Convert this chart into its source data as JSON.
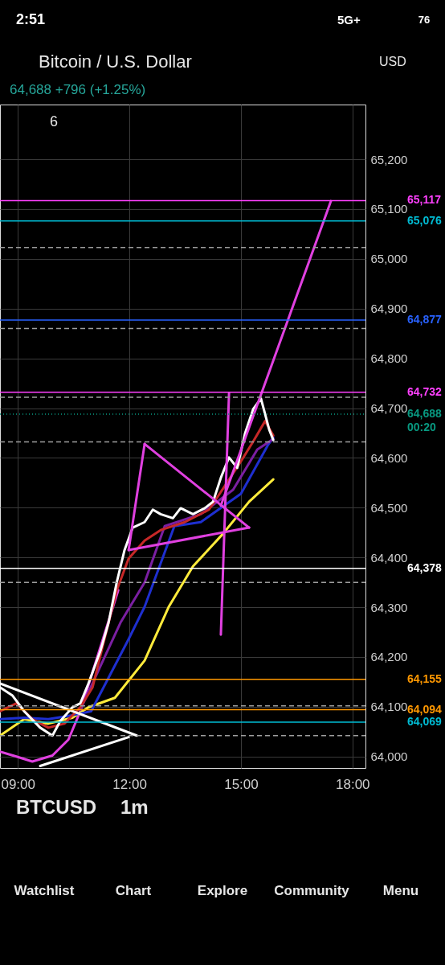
{
  "chart_data": {
    "type": "line",
    "title": "Bitcoin / U.S. Dollar",
    "subtitle": "64,688 +796 (+1.25%)",
    "annotations": [
      "2:51",
      "5G+",
      "76",
      "6",
      "USD",
      "00:20",
      "BTCUSD",
      "1m",
      "Watchlist",
      "Chart",
      "Explore",
      "Community",
      "Menu"
    ],
    "xlim": [
      8.52,
      18.35
    ],
    "ylim": [
      63977,
      65310
    ],
    "xticks": [
      {
        "value": 9,
        "label": "09:00"
      },
      {
        "value": 12,
        "label": "12:00"
      },
      {
        "value": 15,
        "label": "15:00"
      },
      {
        "value": 18,
        "label": "18:00"
      }
    ],
    "yticks": [
      {
        "value": 64000,
        "label": "64,000"
      },
      {
        "value": 64100,
        "label": "64,100"
      },
      {
        "value": 64200,
        "label": "64,200"
      },
      {
        "value": 64300,
        "label": "64,300"
      },
      {
        "value": 64400,
        "label": "64,400"
      },
      {
        "value": 64500,
        "label": "64,500"
      },
      {
        "value": 64600,
        "label": "64,600"
      },
      {
        "value": 64700,
        "label": "64,700"
      },
      {
        "value": 64800,
        "label": "64,800"
      },
      {
        "value": 64900,
        "label": "64,900"
      },
      {
        "value": 65000,
        "label": "65,000"
      },
      {
        "value": 65100,
        "label": "65,100"
      },
      {
        "value": 65200,
        "label": "65,200"
      }
    ],
    "grid": true,
    "marker": "none",
    "line_style": "solid",
    "series": [
      {
        "color": "#e040e0",
        "x": [
          8.52,
          8.96,
          9.39,
          9.93,
          10.36,
          10.68,
          11.22,
          11.7
        ],
        "values": [
          64010,
          64000,
          63990,
          64002,
          64034,
          64091,
          64220,
          64334
        ]
      },
      {
        "color": "#ffeb3b",
        "x": [
          8.52,
          9.17,
          9.82,
          10.47,
          10.9,
          11.61,
          12.41,
          13.06,
          13.71,
          14.51,
          15.22,
          15.87
        ],
        "values": [
          64042,
          64075,
          64066,
          64078,
          64099,
          64118,
          64193,
          64301,
          64382,
          64447,
          64512,
          64557
        ]
      },
      {
        "color": "#1e2fd0",
        "x": [
          8.52,
          9.17,
          9.82,
          10.47,
          10.97,
          11.98,
          12.41,
          13.21,
          13.92,
          15.0,
          15.72,
          15.87
        ],
        "values": [
          64075,
          64078,
          64075,
          64083,
          64091,
          64236,
          64301,
          64463,
          64471,
          64528,
          64625,
          64641
        ]
      },
      {
        "color": "#7b1fa2",
        "x": [
          10.68,
          11.76,
          12.41,
          12.95,
          13.92,
          14.79,
          15.44,
          15.87
        ],
        "values": [
          64094,
          64269,
          64350,
          64463,
          64487,
          64536,
          64617,
          64638
        ]
      },
      {
        "color": "#c62828",
        "x": [
          8.52,
          8.96,
          9.39,
          9.82,
          10.25,
          10.68,
          11.01,
          11.33,
          11.66,
          11.98,
          12.41,
          12.84,
          13.49,
          14.14,
          14.57,
          15.0,
          15.33,
          15.65,
          15.87
        ],
        "values": [
          64091,
          64107,
          64075,
          64058,
          64066,
          64099,
          64139,
          64236,
          64334,
          64398,
          64434,
          64455,
          64471,
          64496,
          64544,
          64593,
          64633,
          64674,
          64645
        ]
      },
      {
        "color": "#ffffff",
        "x": [
          8.52,
          8.85,
          9.17,
          9.6,
          9.93,
          10.14,
          10.47,
          10.68,
          10.9,
          11.22,
          11.44,
          11.66,
          11.87,
          12.09,
          12.41,
          12.63,
          12.84,
          13.17,
          13.38,
          13.71,
          14.03,
          14.25,
          14.46,
          14.68,
          14.9,
          15.11,
          15.33,
          15.54,
          15.76,
          15.87
        ],
        "values": [
          64139,
          64123,
          64091,
          64058,
          64042,
          64071,
          64099,
          64107,
          64147,
          64212,
          64269,
          64350,
          64415,
          64460,
          64471,
          64496,
          64487,
          64479,
          64499,
          64487,
          64499,
          64512,
          64560,
          64601,
          64580,
          64649,
          64698,
          64719,
          64657,
          64636
        ]
      },
      {
        "color": "#ffffff",
        "x": [
          8.52,
          12.2
        ],
        "values": [
          64147,
          64042
        ]
      },
      {
        "color": "#ffffff",
        "x": [
          9.6,
          11.98
        ],
        "values": [
          63981,
          64039
        ]
      },
      {
        "color": "#e040e0",
        "x": [
          14.46,
          17.42
        ],
        "values": [
          64504,
          65116
        ]
      },
      {
        "color": "#e040e0",
        "x": [
          12.41,
          15.22
        ],
        "values": [
          64628,
          64460
        ]
      },
      {
        "color": "#e040e0",
        "x": [
          11.98,
          15.22
        ],
        "values": [
          64415,
          64460
        ]
      },
      {
        "color": "#e040e0",
        "x": [
          11.98,
          12.41
        ],
        "values": [
          64415,
          64628
        ]
      },
      {
        "color": "#e040e0",
        "x": [
          14.46,
          14.68
        ],
        "values": [
          64245,
          64730
        ]
      }
    ],
    "ref_lines": [
      {
        "axis": "y",
        "value": 65117,
        "label": "65,117",
        "color": "#ff40ff",
        "line_style": "solid"
      },
      {
        "axis": "y",
        "value": 65076,
        "label": "65,076",
        "color": "#00bcd4",
        "line_style": "solid"
      },
      {
        "axis": "y",
        "value": 64877,
        "label": "64,877",
        "color": "#2962ff",
        "line_style": "solid"
      },
      {
        "axis": "y",
        "value": 64732,
        "label": "64,732",
        "color": "#ff40ff",
        "line_style": "solid"
      },
      {
        "axis": "y",
        "value": 64688,
        "label": "64,688",
        "color": "#089981",
        "line_style": "dotted"
      },
      {
        "axis": "y",
        "value": 64378,
        "label": "64,378",
        "color": "#ffffff",
        "line_style": "solid"
      },
      {
        "axis": "y",
        "value": 64155,
        "label": "64,155",
        "color": "#ff9800",
        "line_style": "solid"
      },
      {
        "axis": "y",
        "value": 64094,
        "label": "64,094",
        "color": "#ff9800",
        "line_style": "solid"
      },
      {
        "axis": "y",
        "value": 64069,
        "label": "64,069",
        "color": "#00bcd4",
        "line_style": "solid"
      },
      {
        "axis": "y",
        "value": 65023,
        "color": "#9e9e9e",
        "line_style": "dashed"
      },
      {
        "axis": "y",
        "value": 64860,
        "color": "#9e9e9e",
        "line_style": "dashed"
      },
      {
        "axis": "y",
        "value": 64722,
        "color": "#9e9e9e",
        "line_style": "dashed"
      },
      {
        "axis": "y",
        "value": 64632,
        "color": "#9e9e9e",
        "line_style": "dashed"
      },
      {
        "axis": "y",
        "value": 64350,
        "color": "#9e9e9e",
        "line_style": "dashed"
      },
      {
        "axis": "y",
        "value": 64102,
        "color": "#9e9e9e",
        "line_style": "dashed"
      },
      {
        "axis": "y",
        "value": 64042,
        "color": "#9e9e9e",
        "line_style": "dashed"
      }
    ]
  }
}
